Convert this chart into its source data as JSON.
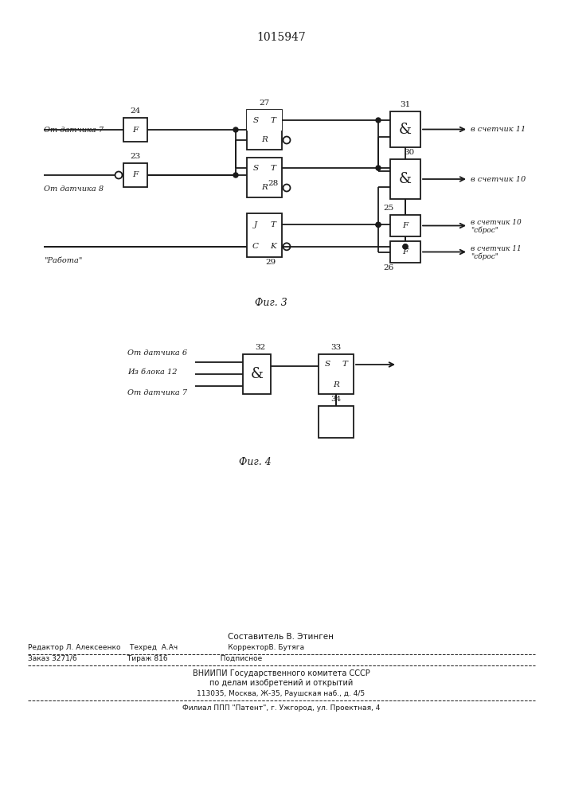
{
  "title": "1015947",
  "fig3_label": "Фиг. 3",
  "fig4_label": "Фиг. 4",
  "footer_lines": [
    "Составитель В. Этинген",
    "Редактор Л. Алексеенко    Техред  А.Ач                      КорректорВ. Бутяга",
    "Заказ 3271/6                      Тираж 816                       Подписное",
    "ВНИИПИ Государственного комитета СССР",
    "по делам изобретений и открытий",
    "113035, Москва, Ж-35, Раушская наб., д. 4/5",
    "Филиал ППП \"Патент\", г. Ужгород, ул. Проектная, 4"
  ],
  "bg_color": "#ffffff"
}
